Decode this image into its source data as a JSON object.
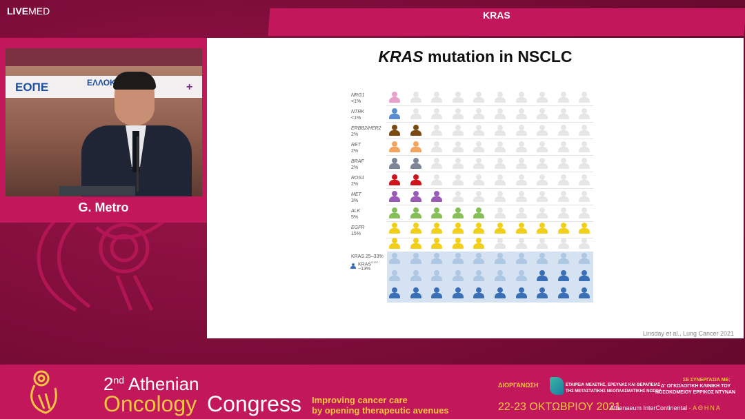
{
  "header": {
    "logo_bold": "LIVE",
    "logo_light": "MED",
    "section_title": "KRAS"
  },
  "speaker": {
    "name": "G. Metro",
    "backdrop_logo_1": "ΕΟΠΕ",
    "backdrop_logo_2": "ΕΛΛΟΚ",
    "backdrop_logo_3": "+"
  },
  "slide": {
    "title_gene": "KRAS",
    "title_rest": " mutation in NSCLC",
    "citation": "Linsday et al., Lung Cancer 2021",
    "rows": [
      {
        "gene": "NRG1",
        "pct": "<1%",
        "count": 1,
        "color": "#e8a0cc"
      },
      {
        "gene": "NTRK",
        "pct": "<1%",
        "count": 1,
        "color": "#5b8fcf"
      },
      {
        "gene": "ERBB2/HER2",
        "pct": "2%",
        "count": 2,
        "color": "#7a4a12"
      },
      {
        "gene": "RET",
        "pct": "2%",
        "count": 2,
        "color": "#f2a661"
      },
      {
        "gene": "BRAF",
        "pct": "2%",
        "count": 2,
        "color": "#7d8699"
      },
      {
        "gene": "ROS1",
        "pct": "2%",
        "count": 2,
        "color": "#d0141c"
      },
      {
        "gene": "MET",
        "pct": "3%",
        "count": 3,
        "color": "#9a5ab8"
      },
      {
        "gene": "ALK",
        "pct": "5%",
        "count": 5,
        "color": "#86bf5a"
      },
      {
        "gene": "EGFR",
        "pct": "15%",
        "count": 15,
        "color": "#f2d01a"
      }
    ],
    "kras": {
      "label": "KRAS 25–33%",
      "sub_label": "KRAS",
      "sub_label_sup": "G12C",
      "sub_pct": "~13%",
      "light_color": "#aec7e2",
      "dark_color": "#3b6fb5",
      "light_count": 17,
      "dark_count": 13
    },
    "empty_color": "#e6e6e6"
  },
  "congress": {
    "edition": "2",
    "edition_sup": "nd",
    "edition_word": "Athenian",
    "name_1": "Oncology",
    "name_2": "Congress",
    "tagline_1": "Improving cancer care",
    "tagline_2": "by opening therapeutic avenues",
    "organizer_label": "ΔΙΟΡΓΑΝΩΣΗ",
    "organizer_name_1": "ΕΤΑΙΡΕΙΑ ΜΕΛΕΤΗΣ, ΕΡΕΥΝΑΣ ΚΑΙ ΘΕΡΑΠΕΙΑΣ",
    "organizer_name_2": "ΤΗΣ ΜΕΤΑΣΤΑΤΙΚΗΣ ΝΕΟΠΛΑΣΜΑΤΙΚΗΣ ΝΟΣΟΥ",
    "cooperation_label": "ΣΕ ΣΥΝΕΡΓΑΣΙΑ ΜΕ:",
    "cooperation_1": "Δ' ΟΓΚΟΛΟΓΙΚΗ ΚΛΙΝΙΚΗ ΤΟΥ",
    "cooperation_2": "ΝΟΣΟΚΟΜΕΙΟΥ ΕΡΡΙΚΟΣ ΝΤΥΝΑΝ",
    "dates": "22-23 ΟΚΤΩΒΡΙΟΥ 2021",
    "venue": "Athenaeum InterContinental",
    "venue_sep": " - ",
    "city": "ΑΘΗΝΑ"
  }
}
